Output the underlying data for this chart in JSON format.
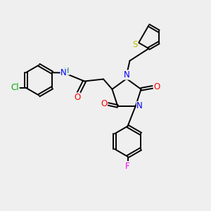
{
  "bg_color": "#efefef",
  "bond_color": "#000000",
  "N_color": "#0000ff",
  "O_color": "#ff0000",
  "S_color": "#bbbb00",
  "Cl_color": "#00aa00",
  "F_color": "#ff00ff",
  "H_color": "#008080",
  "line_width": 1.4,
  "font_size": 8.5,
  "xlim": [
    0,
    10
  ],
  "ylim": [
    0,
    10
  ]
}
